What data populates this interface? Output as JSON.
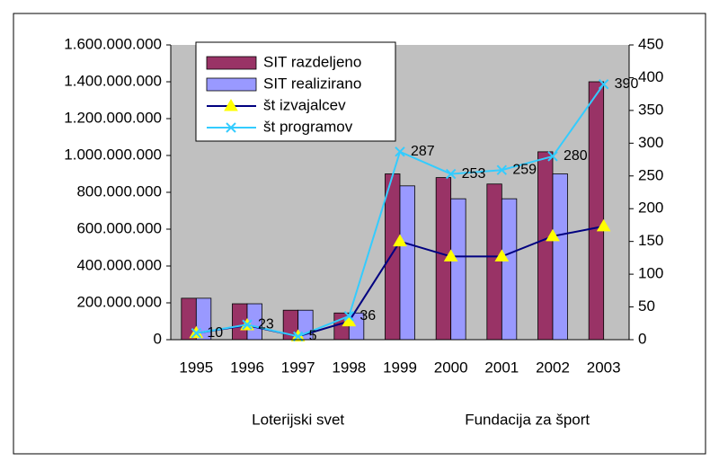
{
  "chart_data": {
    "type": "bar-line",
    "categories": [
      "1995",
      "1996",
      "1997",
      "1998",
      "1999",
      "2000",
      "2001",
      "2002",
      "2003"
    ],
    "groups": [
      "Loterijski svet",
      "Fundacija za šport"
    ],
    "series": [
      {
        "name": "SIT razdeljeno",
        "type": "bar",
        "color": "#993366",
        "values": [
          225000000,
          195000000,
          160000000,
          145000000,
          900000000,
          880000000,
          845000000,
          1020000000,
          1400000000
        ]
      },
      {
        "name": "SIT realizirano",
        "type": "bar",
        "color": "#9999ff",
        "values": [
          225000000,
          195000000,
          160000000,
          145000000,
          835000000,
          765000000,
          765000000,
          900000000,
          null
        ]
      },
      {
        "name": "št izvajalcev",
        "type": "line",
        "axis": "y2",
        "color": "#000080",
        "marker": "triangle",
        "marker_color": "#ffff00",
        "values": [
          10,
          22,
          5,
          28,
          150,
          127,
          127,
          158,
          173
        ]
      },
      {
        "name": "št programov",
        "type": "line",
        "axis": "y2",
        "color": "#33ccff",
        "marker": "x",
        "values": [
          10,
          23,
          5,
          36,
          287,
          253,
          259,
          280,
          390
        ],
        "data_labels": true
      }
    ],
    "ylim": [
      0,
      1600000000
    ],
    "yticks": [
      0,
      {
        "value": 200000000,
        "label": "200.000.000"
      },
      {
        "value": 400000000,
        "label": "400.000.000"
      },
      {
        "value": 600000000,
        "label": "600.000.000"
      },
      {
        "value": 800000000,
        "label": "800.000.000"
      },
      {
        "value": 1000000000,
        "label": "1.000.000.000"
      },
      {
        "value": 1200000000,
        "label": "1.200.000.000"
      },
      {
        "value": 1400000000,
        "label": "1.400.000.000"
      },
      {
        "value": 1600000000,
        "label": "1.600.000.000"
      }
    ],
    "y2lim": [
      0,
      450
    ],
    "y2ticks": [
      0,
      50,
      100,
      150,
      200,
      250,
      300,
      350,
      400,
      450
    ],
    "grid": false,
    "legend": "top-left"
  }
}
